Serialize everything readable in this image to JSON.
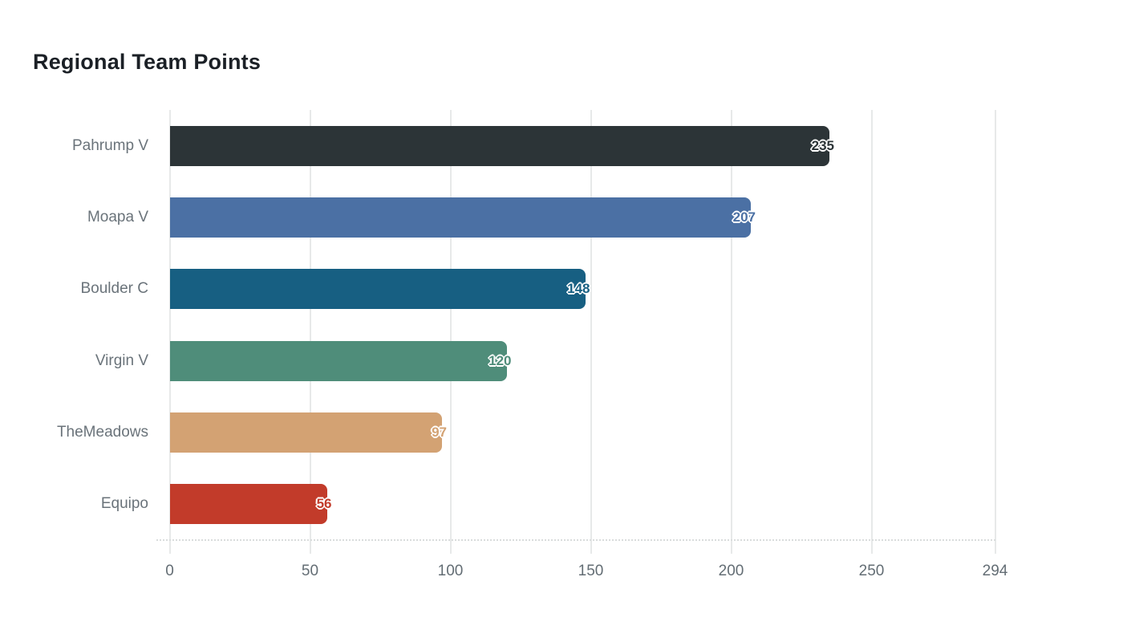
{
  "chart_data": {
    "type": "bar",
    "orientation": "horizontal",
    "title": "Regional Team Points",
    "categories": [
      "Pahrump V",
      "Moapa V",
      "Boulder C",
      "Virgin V",
      "TheMeadows",
      "Equipo"
    ],
    "series": [
      {
        "name": "Points",
        "values": [
          235,
          207,
          148,
          120,
          97,
          56
        ]
      }
    ],
    "bar_colors": [
      "#2c3437",
      "#4b70a4",
      "#175f82",
      "#4f8d7a",
      "#d3a273",
      "#c23b2a"
    ],
    "xticks": [
      0,
      50,
      100,
      150,
      200,
      250,
      294
    ],
    "xlim": [
      0,
      294
    ],
    "xlabel": "",
    "ylabel": "",
    "grid": "vertical-gridlines-on",
    "legend": "none",
    "value_labels": "bar-color-text-clipped-at-bar-end"
  },
  "colors": {
    "background": "#ffffff",
    "grid": "#e7e9e9",
    "axis_line": "#d9dcdc",
    "title_text": "#1b2026",
    "tick_text": "#636d74",
    "category_text": "#6a737a"
  }
}
